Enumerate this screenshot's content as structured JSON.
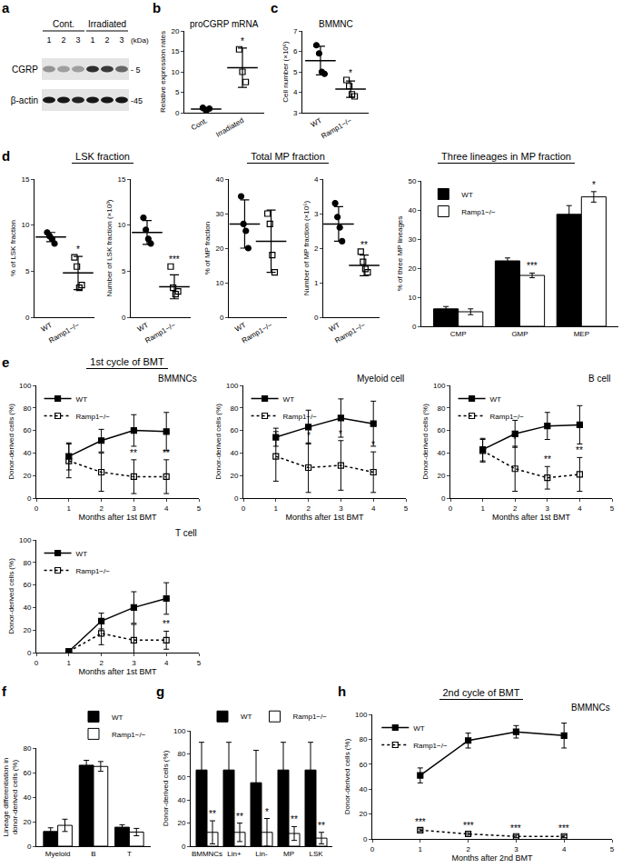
{
  "blot": {
    "panel": "a",
    "unit": "(kDa)",
    "groups": [
      {
        "label": "Cont.",
        "lanes": [
          "1",
          "2",
          "3"
        ]
      },
      {
        "label": "Irradiated",
        "lanes": [
          "1",
          "2",
          "3"
        ]
      }
    ],
    "rows": [
      {
        "label": "CGRP",
        "size": "- 5",
        "intensity": [
          0.35,
          0.3,
          0.3,
          0.8,
          0.75,
          0.55
        ]
      },
      {
        "label": "β-actin",
        "size": "-45",
        "intensity": [
          0.9,
          0.9,
          0.85,
          0.9,
          0.9,
          0.9
        ]
      }
    ]
  },
  "chart_data": [
    {
      "panel": "b",
      "type": "dot",
      "title": "proCGRP mRNA",
      "ylabel": "Relative expression rates",
      "categories": [
        "Cont.",
        "Irradiated"
      ],
      "groups": [
        {
          "color": "#000000",
          "marker": "circle",
          "points": [
            1.2,
            0.5,
            1.0
          ],
          "mean": 0.9,
          "sd": 0.4
        },
        {
          "color": "#000000",
          "marker": "square-open",
          "points": [
            15.5,
            10,
            7.5
          ],
          "mean": 11,
          "sd": 4.8
        }
      ],
      "ylim": [
        0,
        20
      ],
      "yticks": [
        0,
        5,
        10,
        15,
        20
      ],
      "significance": [
        {
          "x": "Irradiated",
          "text": "*"
        }
      ]
    },
    {
      "panel": "c",
      "type": "dot",
      "title": "BMMNC",
      "ylabel": "Cell number (×10⁶)",
      "categories": [
        "WT",
        "Ramp1−/−"
      ],
      "groups": [
        {
          "color": "#000000",
          "marker": "circle",
          "points": [
            6.3,
            5.9,
            5.0,
            4.9
          ],
          "mean": 5.55,
          "sd": 0.7
        },
        {
          "color": "#000000",
          "marker": "square-open",
          "points": [
            4.6,
            4.3,
            3.9,
            3.8
          ],
          "mean": 4.15,
          "sd": 0.4
        }
      ],
      "ylim": [
        3,
        7
      ],
      "yticks": [
        3,
        4,
        5,
        6,
        7
      ],
      "significance": [
        {
          "x": "Ramp1−/−",
          "text": "*"
        }
      ]
    },
    {
      "panel": "d",
      "group_title": "LSK fraction",
      "type": "dot",
      "ylabel": "% of LSK fraction",
      "categories": [
        "WT",
        "Ramp1−/−"
      ],
      "groups": [
        {
          "color": "#000000",
          "marker": "circle",
          "points": [
            9.2,
            8.8,
            8.5,
            8.0
          ],
          "mean": 8.7,
          "sd": 0.5
        },
        {
          "color": "#000000",
          "marker": "square-open",
          "points": [
            6.5,
            5.5,
            3.2,
            3.5
          ],
          "mean": 4.8,
          "sd": 1.8
        }
      ],
      "ylim": [
        0,
        15
      ],
      "yticks": [
        0,
        5,
        10,
        15
      ],
      "significance": [
        {
          "x": "Ramp1−/−",
          "text": "*"
        }
      ]
    },
    {
      "type": "dot",
      "ylabel": "Number of LSK fraction (×10³)",
      "categories": [
        "WT",
        "Ramp1−/−"
      ],
      "groups": [
        {
          "color": "#000000",
          "marker": "circle",
          "points": [
            10.8,
            9.5,
            8.5,
            8.0
          ],
          "mean": 9.2,
          "sd": 1.3
        },
        {
          "color": "#000000",
          "marker": "square-open",
          "points": [
            5.5,
            3.2,
            2.5,
            2.8
          ],
          "mean": 3.3,
          "sd": 1.3
        }
      ],
      "ylim": [
        0,
        15
      ],
      "yticks": [
        0,
        5,
        10,
        15
      ],
      "significance": [
        {
          "x": "Ramp1−/−",
          "text": "***"
        }
      ]
    },
    {
      "group_title": "Total MP fraction",
      "type": "dot",
      "ylabel": "% of MP fraction",
      "categories": [
        "WT",
        "Ramp1−/−"
      ],
      "groups": [
        {
          "color": "#000000",
          "marker": "circle",
          "points": [
            35,
            27,
            25,
            20
          ],
          "mean": 27,
          "sd": 7
        },
        {
          "color": "#000000",
          "marker": "square-open",
          "points": [
            30,
            27,
            18,
            13
          ],
          "mean": 22,
          "sd": 9
        }
      ],
      "ylim": [
        0,
        40
      ],
      "yticks": [
        0,
        10,
        20,
        30,
        40
      ]
    },
    {
      "type": "dot",
      "ylabel": "Number of MP fraction (×10⁵)",
      "categories": [
        "WT",
        "Ramp1−/−"
      ],
      "groups": [
        {
          "color": "#000000",
          "marker": "circle",
          "points": [
            3.3,
            2.9,
            2.6,
            2.2
          ],
          "mean": 2.7,
          "sd": 0.5
        },
        {
          "color": "#000000",
          "marker": "square-open",
          "points": [
            1.9,
            1.6,
            1.4,
            1.3
          ],
          "mean": 1.5,
          "sd": 0.3
        }
      ],
      "ylim": [
        0,
        4
      ],
      "yticks": [
        0,
        1,
        2,
        3,
        4
      ],
      "significance": [
        {
          "x": "Ramp1−/−",
          "text": "**"
        }
      ]
    },
    {
      "group_title": "Three lineages in MP fraction",
      "type": "bar",
      "ylabel": "% of three MP lineages",
      "categories": [
        "CMP",
        "GMP",
        "MEP"
      ],
      "series": [
        {
          "name": "WT",
          "color": "#000000",
          "values": [
            6,
            22.5,
            38.5
          ],
          "error": [
            0.8,
            1,
            3
          ]
        },
        {
          "name": "Ramp1−/−",
          "color": "#ffffff",
          "values": [
            5,
            17.5,
            44.5
          ],
          "error": [
            1,
            0.8,
            1.8
          ]
        }
      ],
      "ylim": [
        0,
        50
      ],
      "yticks": [
        0,
        10,
        20,
        30,
        40,
        50
      ],
      "legend": "upper left",
      "significance": [
        {
          "x": "GMP",
          "text": "***"
        },
        {
          "x": "MEP",
          "text": "*"
        }
      ]
    },
    {
      "panel": "e",
      "group_title": "1st cycle of BMT",
      "type": "line",
      "title": "BMMNCs",
      "xlabel": "Months after 1st BMT",
      "ylabel": "Donor-derived cells (%)",
      "x": [
        1,
        2,
        3,
        4
      ],
      "series": [
        {
          "name": "WT",
          "color": "#000000",
          "marker": "square",
          "line_style": "solid",
          "values": [
            37,
            51,
            60,
            59
          ],
          "error": [
            12,
            10,
            14,
            17
          ]
        },
        {
          "name": "Ramp1−/−",
          "color": "#000000",
          "marker": "square-open",
          "line_style": "dot",
          "values": [
            33,
            23,
            19,
            19
          ],
          "error": [
            15,
            17,
            15,
            15
          ]
        }
      ],
      "xlim": [
        0,
        5
      ],
      "xticks": [
        0,
        1,
        2,
        3,
        4,
        5
      ],
      "ylim": [
        0,
        100
      ],
      "yticks": [
        0,
        20,
        40,
        60,
        80,
        100
      ],
      "legend": "upper left",
      "significance": [
        {
          "x": 3,
          "text": "**"
        },
        {
          "x": 4,
          "text": "**"
        }
      ]
    },
    {
      "type": "line",
      "title": "Myeloid cell",
      "xlabel": "Months after 1st BMT",
      "ylabel": "Donor-derived cells (%)",
      "x": [
        1,
        2,
        3,
        4
      ],
      "series": [
        {
          "name": "WT",
          "color": "#000000",
          "marker": "square",
          "line_style": "solid",
          "values": [
            54,
            63,
            71,
            66
          ],
          "error": [
            8,
            15,
            17,
            20
          ]
        },
        {
          "name": "Ramp1−/−",
          "color": "#000000",
          "marker": "square-open",
          "line_style": "dot",
          "values": [
            37,
            27,
            29,
            23
          ],
          "error": [
            22,
            22,
            22,
            18
          ]
        }
      ],
      "xlim": [
        0,
        5
      ],
      "xticks": [
        0,
        1,
        2,
        3,
        4,
        5
      ],
      "ylim": [
        0,
        100
      ],
      "yticks": [
        0,
        20,
        40,
        60,
        80,
        100
      ],
      "legend": "upper left",
      "significance": [
        {
          "x": 2,
          "text": "*"
        },
        {
          "x": 3,
          "text": "*"
        },
        {
          "x": 4,
          "text": "*"
        }
      ]
    },
    {
      "type": "line",
      "title": "B cell",
      "xlabel": "Months after 1st BMT",
      "ylabel": "Donor-derived cells (%)",
      "x": [
        1,
        2,
        3,
        4
      ],
      "series": [
        {
          "name": "WT",
          "color": "#000000",
          "marker": "square",
          "line_style": "solid",
          "values": [
            43,
            57,
            64,
            65
          ],
          "error": [
            10,
            12,
            12,
            17
          ]
        },
        {
          "name": "Ramp1−/−",
          "color": "#000000",
          "marker": "square-open",
          "line_style": "dot",
          "values": [
            42,
            26,
            18,
            21
          ],
          "error": [
            10,
            20,
            10,
            15
          ]
        }
      ],
      "xlim": [
        0,
        5
      ],
      "xticks": [
        0,
        1,
        2,
        3,
        4,
        5
      ],
      "ylim": [
        0,
        100
      ],
      "yticks": [
        0,
        20,
        40,
        60,
        80,
        100
      ],
      "legend": "upper left",
      "significance": [
        {
          "x": 2,
          "text": "*"
        },
        {
          "x": 3,
          "text": "**"
        },
        {
          "x": 4,
          "text": "**"
        }
      ]
    },
    {
      "type": "line",
      "title": "T cell",
      "xlabel": "Months after 1st BMT",
      "ylabel": "Donor-derived cells (%)",
      "x": [
        1,
        2,
        3,
        4
      ],
      "series": [
        {
          "name": "WT",
          "color": "#000000",
          "marker": "square",
          "line_style": "solid",
          "values": [
            1,
            28,
            40,
            48
          ],
          "error": [
            1,
            7,
            14,
            14
          ]
        },
        {
          "name": "Ramp1−/−",
          "color": "#000000",
          "marker": "square-open",
          "line_style": "dot",
          "values": [
            1,
            17,
            11,
            11
          ],
          "error": [
            1,
            10,
            14,
            8
          ]
        }
      ],
      "xlim": [
        0,
        5
      ],
      "xticks": [
        0,
        1,
        2,
        3,
        4,
        5
      ],
      "ylim": [
        0,
        100
      ],
      "yticks": [
        0,
        20,
        40,
        60,
        80,
        100
      ],
      "legend": "upper left",
      "significance": [
        {
          "x": 4,
          "text": "**"
        }
      ]
    },
    {
      "panel": "f",
      "type": "bar",
      "ylabel": "Lineage differentiation in\ndonor-derived cells (%)",
      "categories": [
        "Myeloid",
        "B",
        "T"
      ],
      "series": [
        {
          "name": "WT",
          "color": "#000000",
          "values": [
            12,
            66,
            15.5
          ],
          "error": [
            3,
            4,
            2
          ]
        },
        {
          "name": "Ramp1−/−",
          "color": "#ffffff",
          "values": [
            17,
            65,
            11.5
          ],
          "error": [
            5,
            4,
            3
          ]
        }
      ],
      "ylim": [
        0,
        80
      ],
      "yticks": [
        0,
        20,
        40,
        60,
        80
      ],
      "legend": "top"
    },
    {
      "panel": "g",
      "type": "bar",
      "ylabel": "Donor-derived cells (%)",
      "categories": [
        "BMMNCs",
        "Lin+",
        "Lin-",
        "MP",
        "LSK"
      ],
      "series": [
        {
          "name": "WT",
          "color": "#000000",
          "values": [
            66,
            66,
            55,
            66,
            66
          ],
          "error": [
            24,
            24,
            28,
            24,
            24
          ]
        },
        {
          "name": "Ramp1−/−",
          "color": "#ffffff",
          "values": [
            12,
            12,
            12,
            11,
            7
          ],
          "error": [
            10,
            8,
            12,
            6,
            5
          ]
        }
      ],
      "ylim": [
        0,
        100
      ],
      "yticks": [
        0,
        20,
        40,
        60,
        80,
        100
      ],
      "legend": "top",
      "significance": [
        {
          "x": "BMMNCs",
          "text": "**"
        },
        {
          "x": "Lin+",
          "text": "**"
        },
        {
          "x": "Lin-",
          "text": "*"
        },
        {
          "x": "MP",
          "text": "**"
        },
        {
          "x": "LSK",
          "text": "**"
        }
      ]
    },
    {
      "panel": "h",
      "group_title": "2nd cycle of BMT",
      "type": "line",
      "title": "BMMNCs",
      "xlabel": "Months after 2nd BMT",
      "ylabel": "Donor-derived cells (%)",
      "x": [
        1,
        2,
        3,
        4
      ],
      "series": [
        {
          "name": "WT",
          "color": "#000000",
          "marker": "square",
          "line_style": "solid",
          "values": [
            51,
            79,
            86,
            83
          ],
          "error": [
            6,
            6,
            5,
            10
          ]
        },
        {
          "name": "Ramp1−/−",
          "color": "#000000",
          "marker": "square-open",
          "line_style": "dot",
          "values": [
            7,
            4,
            2,
            2
          ],
          "error": [
            1,
            1,
            1,
            1
          ]
        }
      ],
      "xlim": [
        0,
        5
      ],
      "xticks": [
        0,
        1,
        2,
        3,
        4,
        5
      ],
      "ylim": [
        0,
        100
      ],
      "yticks": [
        0,
        20,
        40,
        60,
        80,
        100
      ],
      "legend": "upper left",
      "significance": [
        {
          "x": 1,
          "text": "***"
        },
        {
          "x": 2,
          "text": "***"
        },
        {
          "x": 3,
          "text": "***"
        },
        {
          "x": 4,
          "text": "***"
        }
      ]
    }
  ]
}
